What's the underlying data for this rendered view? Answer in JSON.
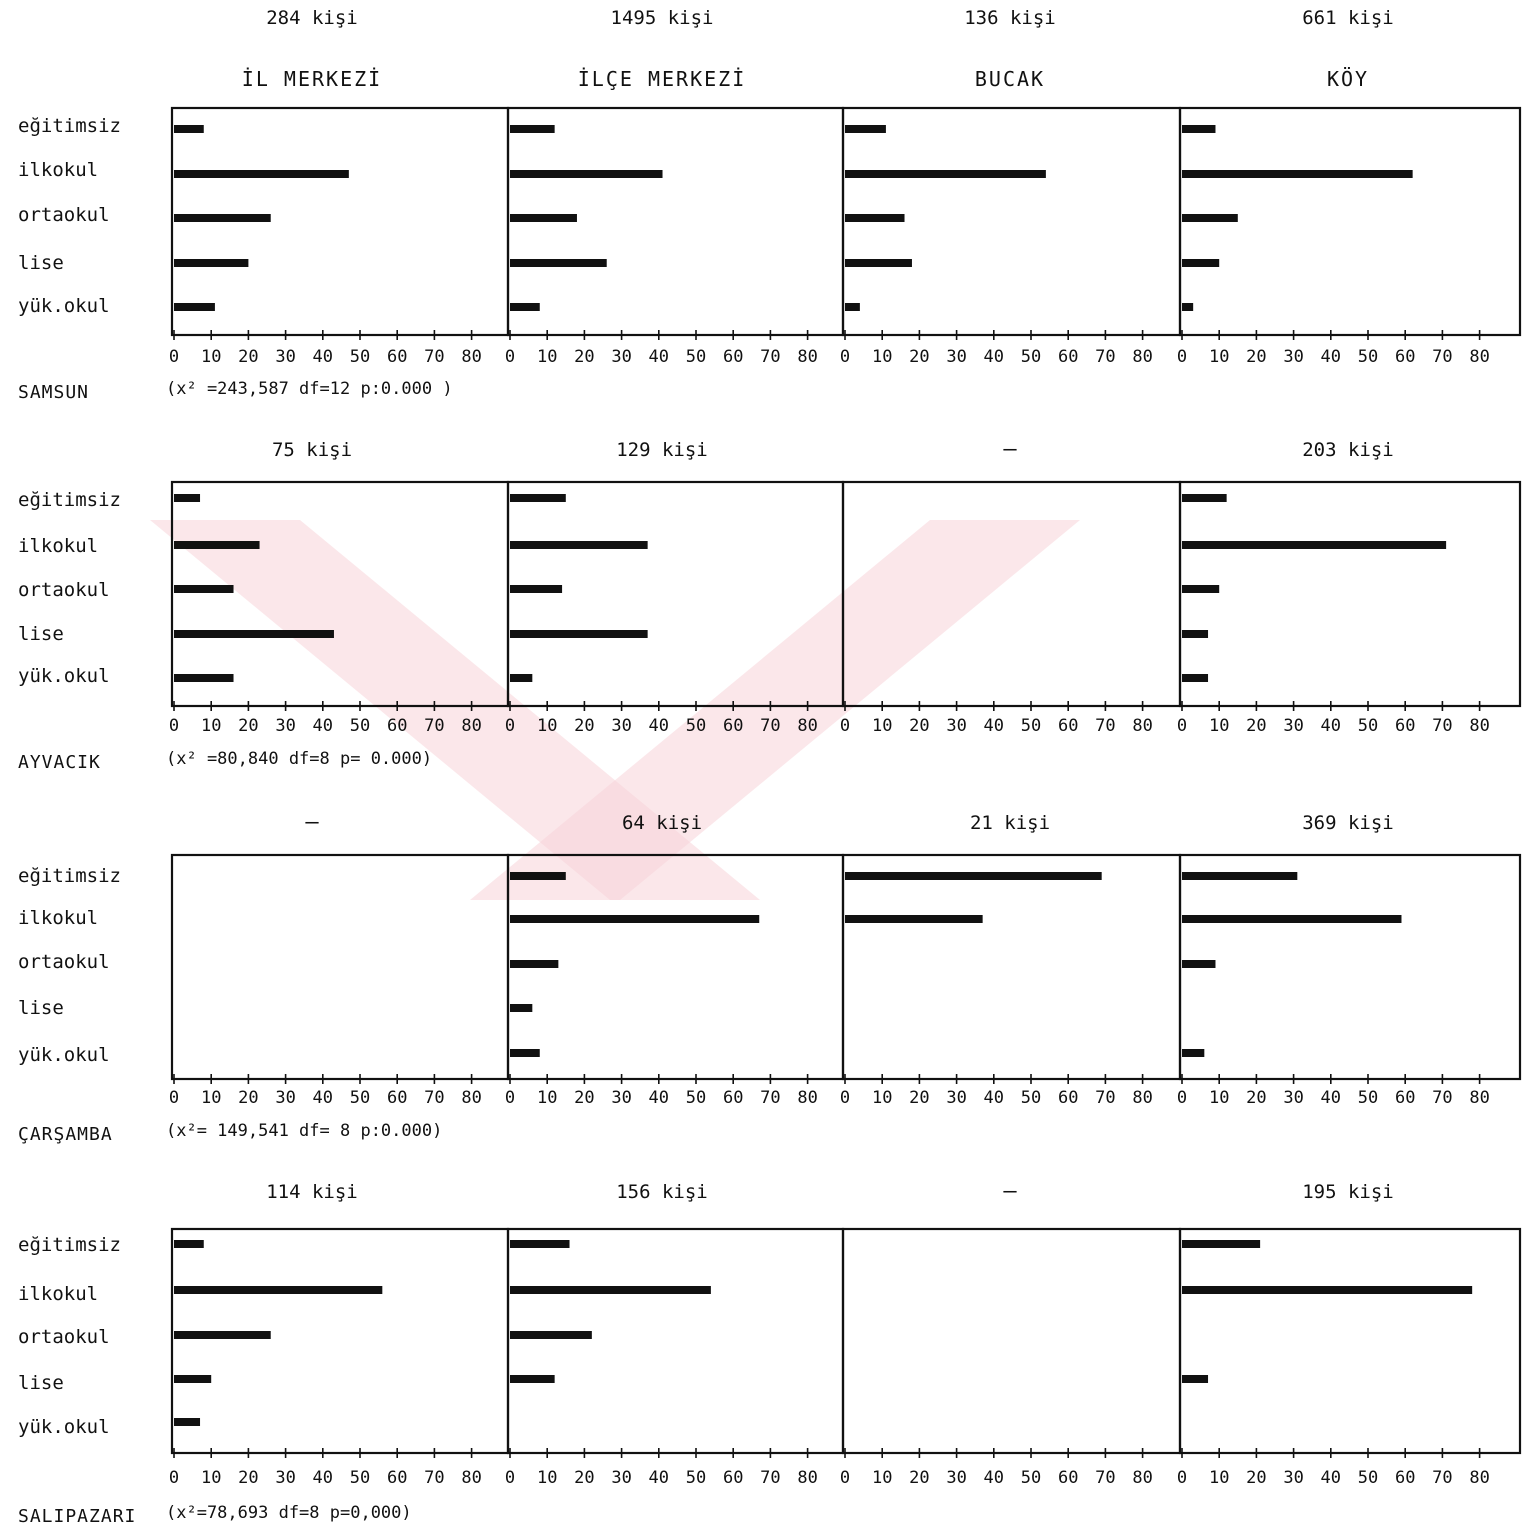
{
  "column_headers": [
    "İL  MERKEZİ",
    "İLÇE  MERKEZİ",
    "BUCAK",
    "KÖY"
  ],
  "categories": [
    "eğitimsiz",
    "ilkokul",
    "ortaokul",
    "lise",
    "yük.okul"
  ],
  "x_ticks": [
    "0",
    "10",
    "20",
    "30",
    "40",
    "50",
    "60",
    "70",
    "80"
  ],
  "colors": {
    "bar": "#111111",
    "axis": "#111111",
    "watermark": "#f7d4d8"
  },
  "chart_data": {
    "type": "bar",
    "orientation": "horizontal",
    "xlim": [
      0,
      85
    ],
    "rows": [
      {
        "region": "SAMSUN",
        "stats": "(x² =243,587   df=12   p:0.000 )",
        "panels": [
          {
            "count": "284 kişi",
            "values": [
              8,
              47,
              26,
              20,
              11
            ]
          },
          {
            "count": "1495 kişi",
            "values": [
              12,
              41,
              18,
              26,
              8
            ]
          },
          {
            "count": "136 kişi",
            "values": [
              11,
              54,
              16,
              18,
              4
            ]
          },
          {
            "count": "661 kişi",
            "values": [
              9,
              62,
              15,
              10,
              3
            ]
          }
        ]
      },
      {
        "region": "AYVACIK",
        "stats": "(x² =80,840   df=8     p= 0.000)",
        "panels": [
          {
            "count": "75 kişi",
            "values": [
              7,
              23,
              16,
              43,
              16
            ]
          },
          {
            "count": "129 kişi",
            "values": [
              15,
              37,
              14,
              37,
              6
            ]
          },
          {
            "count": "—",
            "values": []
          },
          {
            "count": "203 kişi",
            "values": [
              12,
              71,
              10,
              7,
              7
            ]
          }
        ]
      },
      {
        "region": "ÇARŞAMBA",
        "stats": "(x²= 149,541   df= 8   p:0.000)",
        "panels": [
          {
            "count": "—",
            "values": []
          },
          {
            "count": "64 kişi",
            "values": [
              15,
              67,
              13,
              6,
              8
            ]
          },
          {
            "count": "21 kişi",
            "values": [
              69,
              37,
              0,
              0,
              0
            ]
          },
          {
            "count": "369 kişi",
            "values": [
              31,
              59,
              9,
              0,
              6
            ]
          }
        ]
      },
      {
        "region": "SALIPAZARI",
        "stats": "(x²=78,693     df=8   p=0,000)",
        "panels": [
          {
            "count": "114 kişi",
            "values": [
              8,
              56,
              26,
              10,
              7
            ]
          },
          {
            "count": "156 kişi",
            "values": [
              16,
              54,
              22,
              12,
              0
            ]
          },
          {
            "count": "—",
            "values": []
          },
          {
            "count": "195 kişi",
            "values": [
              21,
              78,
              0,
              7,
              0
            ]
          }
        ]
      }
    ]
  }
}
